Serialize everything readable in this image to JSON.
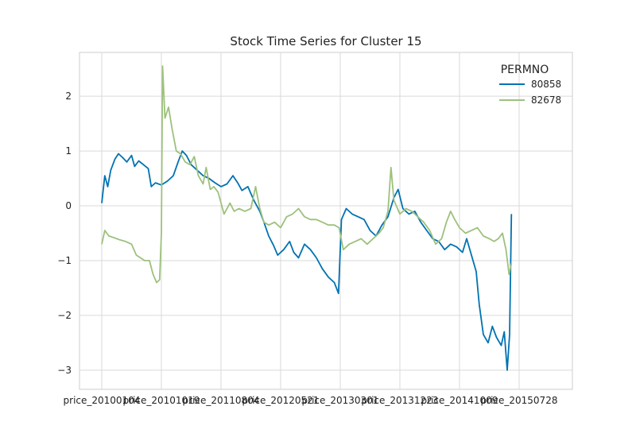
{
  "chart_data": {
    "type": "line",
    "title": "Stock Time Series for Cluster 15",
    "xlabel": "",
    "ylabel": "",
    "x_tick_labels": [
      "price_20100104",
      "price_20101019",
      "price_20110804",
      "price_20120521",
      "price_20130301",
      "price_20131223",
      "price_20141009",
      "price_20150728"
    ],
    "y_ticks": [
      -3,
      -2,
      -1,
      0,
      1,
      2
    ],
    "ylim": [
      -3.35,
      2.8
    ],
    "grid": true,
    "legend": {
      "title": "PERMNO",
      "placement": "top-right"
    },
    "series": [
      {
        "name": "80858",
        "color": "#0072B2",
        "points": [
          [
            0.0,
            0.05
          ],
          [
            0.05,
            0.55
          ],
          [
            0.1,
            0.35
          ],
          [
            0.15,
            0.65
          ],
          [
            0.22,
            0.85
          ],
          [
            0.28,
            0.95
          ],
          [
            0.35,
            0.88
          ],
          [
            0.42,
            0.8
          ],
          [
            0.5,
            0.92
          ],
          [
            0.55,
            0.72
          ],
          [
            0.62,
            0.82
          ],
          [
            0.7,
            0.75
          ],
          [
            0.78,
            0.68
          ],
          [
            0.83,
            0.35
          ],
          [
            0.9,
            0.42
          ],
          [
            1.0,
            0.38
          ],
          [
            1.1,
            0.45
          ],
          [
            1.2,
            0.55
          ],
          [
            1.28,
            0.8
          ],
          [
            1.35,
            1.0
          ],
          [
            1.42,
            0.92
          ],
          [
            1.5,
            0.75
          ],
          [
            1.6,
            0.65
          ],
          [
            1.7,
            0.55
          ],
          [
            1.8,
            0.5
          ],
          [
            1.9,
            0.42
          ],
          [
            2.0,
            0.35
          ],
          [
            2.1,
            0.4
          ],
          [
            2.2,
            0.55
          ],
          [
            2.28,
            0.42
          ],
          [
            2.35,
            0.28
          ],
          [
            2.45,
            0.35
          ],
          [
            2.55,
            0.1
          ],
          [
            2.65,
            -0.1
          ],
          [
            2.72,
            -0.3
          ],
          [
            2.8,
            -0.55
          ],
          [
            2.88,
            -0.72
          ],
          [
            2.95,
            -0.9
          ],
          [
            3.05,
            -0.8
          ],
          [
            3.15,
            -0.65
          ],
          [
            3.22,
            -0.85
          ],
          [
            3.3,
            -0.95
          ],
          [
            3.4,
            -0.7
          ],
          [
            3.5,
            -0.8
          ],
          [
            3.6,
            -0.95
          ],
          [
            3.7,
            -1.15
          ],
          [
            3.8,
            -1.3
          ],
          [
            3.9,
            -1.4
          ],
          [
            3.97,
            -1.6
          ],
          [
            4.02,
            -0.25
          ],
          [
            4.1,
            -0.05
          ],
          [
            4.2,
            -0.15
          ],
          [
            4.3,
            -0.2
          ],
          [
            4.4,
            -0.25
          ],
          [
            4.5,
            -0.45
          ],
          [
            4.6,
            -0.55
          ],
          [
            4.7,
            -0.35
          ],
          [
            4.8,
            -0.2
          ],
          [
            4.9,
            0.15
          ],
          [
            4.97,
            0.3
          ],
          [
            5.05,
            -0.05
          ],
          [
            5.15,
            -0.15
          ],
          [
            5.25,
            -0.1
          ],
          [
            5.35,
            -0.3
          ],
          [
            5.45,
            -0.45
          ],
          [
            5.55,
            -0.6
          ],
          [
            5.65,
            -0.65
          ],
          [
            5.75,
            -0.8
          ],
          [
            5.85,
            -0.7
          ],
          [
            5.95,
            -0.75
          ],
          [
            6.05,
            -0.85
          ],
          [
            6.12,
            -0.6
          ],
          [
            6.2,
            -0.9
          ],
          [
            6.28,
            -1.2
          ],
          [
            6.33,
            -1.8
          ],
          [
            6.4,
            -2.35
          ],
          [
            6.48,
            -2.5
          ],
          [
            6.55,
            -2.2
          ],
          [
            6.62,
            -2.4
          ],
          [
            6.7,
            -2.55
          ],
          [
            6.75,
            -2.3
          ],
          [
            6.8,
            -3.0
          ],
          [
            6.84,
            -2.35
          ],
          [
            6.87,
            -0.15
          ]
        ]
      },
      {
        "name": "82678",
        "color": "#9DC17C",
        "points": [
          [
            0.0,
            -0.7
          ],
          [
            0.05,
            -0.45
          ],
          [
            0.12,
            -0.55
          ],
          [
            0.2,
            -0.58
          ],
          [
            0.3,
            -0.62
          ],
          [
            0.4,
            -0.65
          ],
          [
            0.5,
            -0.7
          ],
          [
            0.58,
            -0.9
          ],
          [
            0.65,
            -0.95
          ],
          [
            0.72,
            -1.0
          ],
          [
            0.8,
            -1.0
          ],
          [
            0.86,
            -1.25
          ],
          [
            0.92,
            -1.4
          ],
          [
            0.97,
            -1.35
          ],
          [
            1.0,
            -0.5
          ],
          [
            1.02,
            2.55
          ],
          [
            1.06,
            1.6
          ],
          [
            1.12,
            1.8
          ],
          [
            1.18,
            1.4
          ],
          [
            1.25,
            1.0
          ],
          [
            1.32,
            0.95
          ],
          [
            1.4,
            0.8
          ],
          [
            1.48,
            0.75
          ],
          [
            1.55,
            0.9
          ],
          [
            1.62,
            0.55
          ],
          [
            1.7,
            0.4
          ],
          [
            1.75,
            0.7
          ],
          [
            1.82,
            0.3
          ],
          [
            1.88,
            0.35
          ],
          [
            1.95,
            0.25
          ],
          [
            2.05,
            -0.15
          ],
          [
            2.15,
            0.05
          ],
          [
            2.22,
            -0.1
          ],
          [
            2.3,
            -0.05
          ],
          [
            2.4,
            -0.1
          ],
          [
            2.5,
            -0.05
          ],
          [
            2.58,
            0.35
          ],
          [
            2.65,
            -0.05
          ],
          [
            2.72,
            -0.3
          ],
          [
            2.8,
            -0.35
          ],
          [
            2.9,
            -0.3
          ],
          [
            3.0,
            -0.4
          ],
          [
            3.1,
            -0.2
          ],
          [
            3.2,
            -0.15
          ],
          [
            3.3,
            -0.05
          ],
          [
            3.4,
            -0.2
          ],
          [
            3.5,
            -0.25
          ],
          [
            3.6,
            -0.25
          ],
          [
            3.7,
            -0.3
          ],
          [
            3.8,
            -0.35
          ],
          [
            3.9,
            -0.35
          ],
          [
            3.98,
            -0.4
          ],
          [
            4.05,
            -0.8
          ],
          [
            4.15,
            -0.7
          ],
          [
            4.25,
            -0.65
          ],
          [
            4.35,
            -0.6
          ],
          [
            4.45,
            -0.7
          ],
          [
            4.55,
            -0.6
          ],
          [
            4.65,
            -0.5
          ],
          [
            4.72,
            -0.4
          ],
          [
            4.8,
            -0.1
          ],
          [
            4.85,
            0.7
          ],
          [
            4.9,
            0.1
          ],
          [
            5.0,
            -0.15
          ],
          [
            5.1,
            -0.05
          ],
          [
            5.2,
            -0.1
          ],
          [
            5.3,
            -0.2
          ],
          [
            5.4,
            -0.3
          ],
          [
            5.5,
            -0.45
          ],
          [
            5.6,
            -0.7
          ],
          [
            5.7,
            -0.6
          ],
          [
            5.78,
            -0.3
          ],
          [
            5.85,
            -0.1
          ],
          [
            5.92,
            -0.25
          ],
          [
            6.0,
            -0.4
          ],
          [
            6.1,
            -0.5
          ],
          [
            6.2,
            -0.45
          ],
          [
            6.3,
            -0.4
          ],
          [
            6.4,
            -0.55
          ],
          [
            6.5,
            -0.6
          ],
          [
            6.58,
            -0.65
          ],
          [
            6.65,
            -0.6
          ],
          [
            6.72,
            -0.5
          ],
          [
            6.78,
            -0.8
          ],
          [
            6.83,
            -1.25
          ],
          [
            6.87,
            -1.05
          ]
        ]
      }
    ]
  }
}
